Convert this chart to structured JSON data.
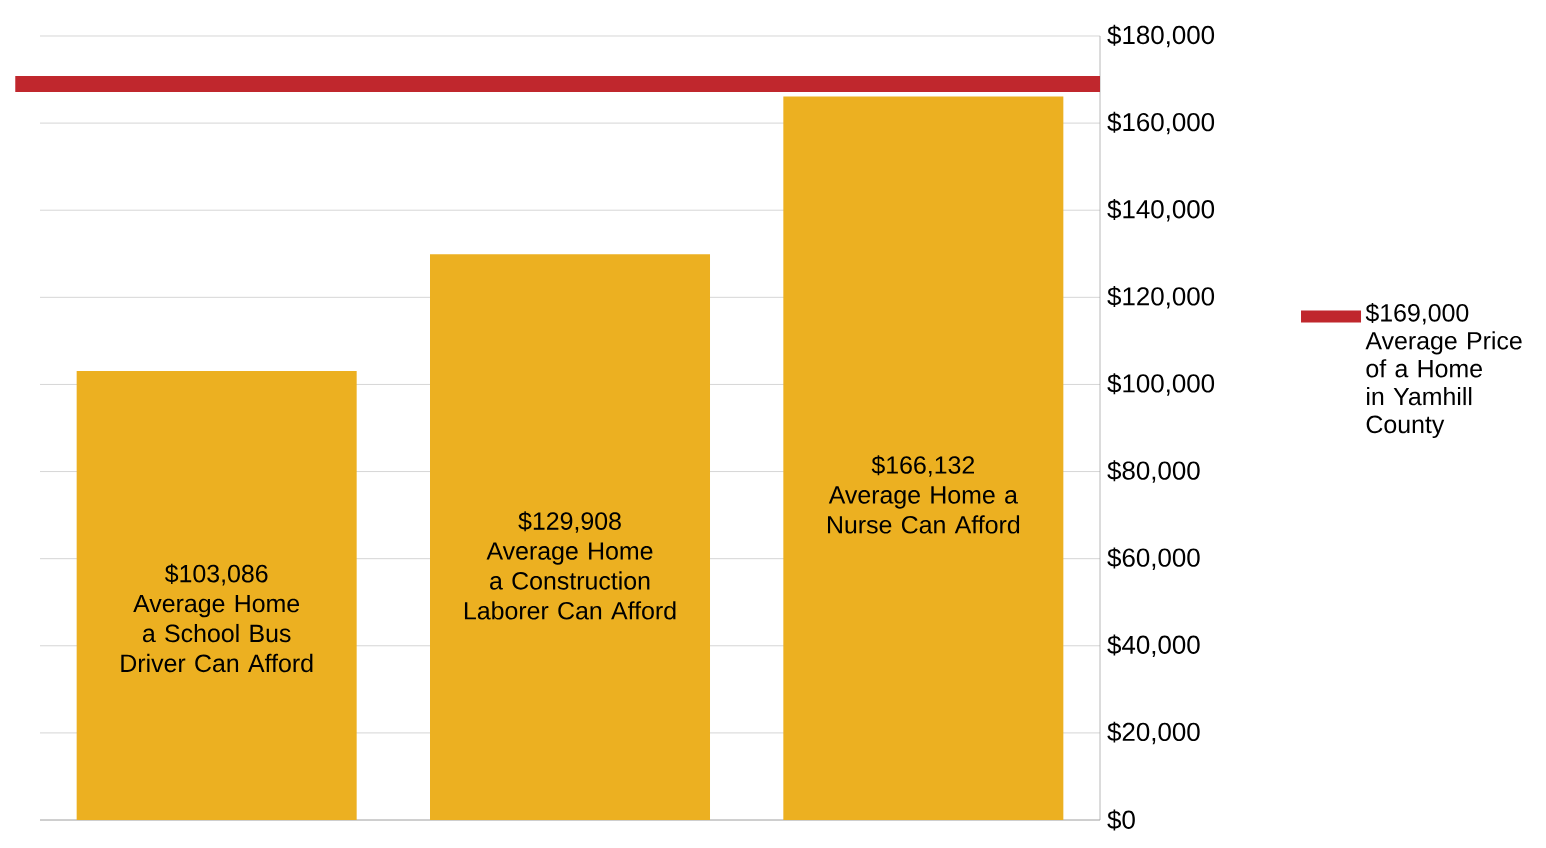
{
  "chart_data": {
    "type": "bar",
    "categories": [
      "Average Home a School Bus Driver Can Afford",
      "Average Home a Construction Laborer Can Afford",
      "Average Home a Nurse Can Afford"
    ],
    "values": [
      103086,
      129908,
      166132
    ],
    "value_labels": [
      "$103,086",
      "$129,908",
      "$166,132"
    ],
    "color": "#ecb021",
    "ylim": [
      0,
      180000
    ],
    "yticks": [
      {
        "value": 0,
        "label": "$0"
      },
      {
        "value": 20000,
        "label": "$20,000"
      },
      {
        "value": 40000,
        "label": "$40,000"
      },
      {
        "value": 60000,
        "label": "$60,000"
      },
      {
        "value": 80000,
        "label": "$80,000"
      },
      {
        "value": 100000,
        "label": "$100,000"
      },
      {
        "value": 120000,
        "label": "$120,000"
      },
      {
        "value": 140000,
        "label": "$140,000"
      },
      {
        "value": 160000,
        "label": "$160,000"
      },
      {
        "value": 180000,
        "label": "$180,000"
      }
    ],
    "grid": "y",
    "ref_lines": [
      {
        "axis": "y",
        "value": 169000,
        "label": "$169,000 Average Price of a Home in Yamhill County",
        "color": "#c0272d"
      }
    ]
  }
}
